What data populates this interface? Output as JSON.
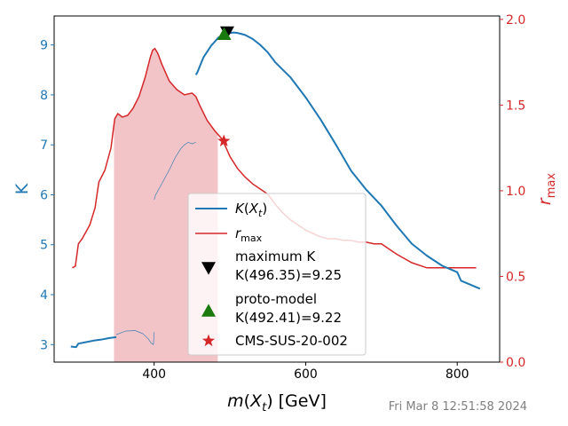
{
  "chart_data": {
    "type": "line",
    "xlabel": "m(X_t) [GeV]",
    "ylabel_left": "K",
    "ylabel_right": "r_max",
    "xlim": [
      268,
      856
    ],
    "ylim_left": [
      2.65,
      9.58
    ],
    "ylim_right": [
      0.0,
      2.02
    ],
    "xticks": [
      400,
      600,
      800
    ],
    "yticks_left": [
      3,
      4,
      5,
      6,
      7,
      8,
      9
    ],
    "yticks_right": [
      0.0,
      0.5,
      1.0,
      1.5,
      2.0
    ],
    "grid": false,
    "legend_position": "lower-center",
    "colors": {
      "K": "#1f77b4",
      "rmax": "#d62728",
      "max_marker": "#000000",
      "proto_marker": "#1b7a0e",
      "cms_marker": "#d62728",
      "excluded_band": "#f2c4c7"
    },
    "series": [
      {
        "name": "K(X_t)",
        "axis": "left",
        "segments": [
          {
            "x": [
              290,
              297,
              300,
              310,
              320,
              330,
              340,
              350
            ],
            "y": [
              2.96,
              2.95,
              3.02,
              3.05,
              3.08,
              3.1,
              3.13,
              3.15
            ]
          },
          {
            "x": [
              350,
              362,
              375,
              385,
              392,
              396,
              399,
              400
            ],
            "y": [
              3.2,
              3.27,
              3.28,
              3.22,
              3.12,
              3.03,
              3.0,
              3.25
            ]
          },
          {
            "x": [
              400,
              402,
              410,
              420,
              428,
              435,
              440,
              445,
              450,
              455
            ],
            "y": [
              5.9,
              6.0,
              6.22,
              6.5,
              6.75,
              6.92,
              7.0,
              7.05,
              7.02,
              7.05
            ]
          },
          {
            "x": [
              455,
              457,
              465,
              475,
              485,
              495,
              500,
              505,
              510,
              520,
              530,
              540,
              550,
              560,
              570,
              580,
              590,
              600,
              620,
              640,
              660,
              680,
              700,
              720,
              740,
              760,
              780,
              800,
              805,
              830
            ],
            "y": [
              8.4,
              8.45,
              8.75,
              8.98,
              9.15,
              9.22,
              9.24,
              9.25,
              9.24,
              9.2,
              9.12,
              9.0,
              8.85,
              8.65,
              8.5,
              8.35,
              8.15,
              7.95,
              7.5,
              7.0,
              6.48,
              6.1,
              5.78,
              5.38,
              5.02,
              4.78,
              4.58,
              4.45,
              4.28,
              4.12
            ]
          }
        ]
      },
      {
        "name": "r_max",
        "axis": "right",
        "x": [
          292,
          296,
          300,
          305,
          315,
          322,
          327,
          335,
          343,
          348,
          352,
          358,
          365,
          372,
          380,
          388,
          395,
          398,
          401,
          405,
          410,
          415,
          420,
          430,
          440,
          450,
          455,
          460,
          470,
          480,
          490,
          500,
          510,
          520,
          530,
          540,
          550,
          560,
          570,
          580,
          590,
          600,
          610,
          620,
          630,
          640,
          650,
          660,
          670,
          680,
          690,
          700,
          710,
          720,
          740,
          760,
          780,
          790,
          800,
          825
        ],
        "y": [
          0.55,
          0.56,
          0.69,
          0.72,
          0.8,
          0.9,
          1.05,
          1.12,
          1.25,
          1.42,
          1.45,
          1.43,
          1.44,
          1.48,
          1.55,
          1.66,
          1.78,
          1.82,
          1.83,
          1.8,
          1.74,
          1.69,
          1.64,
          1.59,
          1.56,
          1.57,
          1.55,
          1.5,
          1.41,
          1.35,
          1.3,
          1.2,
          1.13,
          1.08,
          1.04,
          1.01,
          0.98,
          0.92,
          0.87,
          0.83,
          0.8,
          0.77,
          0.75,
          0.73,
          0.72,
          0.72,
          0.71,
          0.71,
          0.7,
          0.7,
          0.69,
          0.69,
          0.66,
          0.63,
          0.58,
          0.55,
          0.55,
          0.55,
          0.55,
          0.55
        ]
      }
    ],
    "excluded_band": {
      "axis": "right",
      "x": [
        347,
        348,
        352,
        358,
        365,
        372,
        380,
        388,
        395,
        398,
        401,
        405,
        410,
        415,
        420,
        430,
        440,
        450,
        455,
        460,
        470,
        480,
        484
      ],
      "upper": [
        1.4,
        1.42,
        1.45,
        1.43,
        1.44,
        1.48,
        1.55,
        1.66,
        1.78,
        1.82,
        1.83,
        1.8,
        1.74,
        1.69,
        1.64,
        1.59,
        1.56,
        1.57,
        1.55,
        1.5,
        1.41,
        1.35,
        1.33
      ]
    },
    "markers": [
      {
        "label": "maximum K\n K(496.35)=9.25",
        "x": 496.35,
        "y": 9.25,
        "axis": "left",
        "shape": "triangle-down"
      },
      {
        "label": "proto-model\nK(492.41)=9.22",
        "x": 492.41,
        "y": 9.22,
        "axis": "left",
        "shape": "triangle-up"
      },
      {
        "label": "CMS-SUS-20-002",
        "x": 492,
        "y": 1.29,
        "axis": "right",
        "shape": "star"
      }
    ],
    "legend": [
      "K(X_t)",
      "r_max",
      "maximum K\n K(496.35)=9.25",
      "proto-model\nK(492.41)=9.22",
      "CMS-SUS-20-002"
    ]
  },
  "footer": {
    "timestamp": "Fri Mar  8 12:51:58 2024"
  }
}
